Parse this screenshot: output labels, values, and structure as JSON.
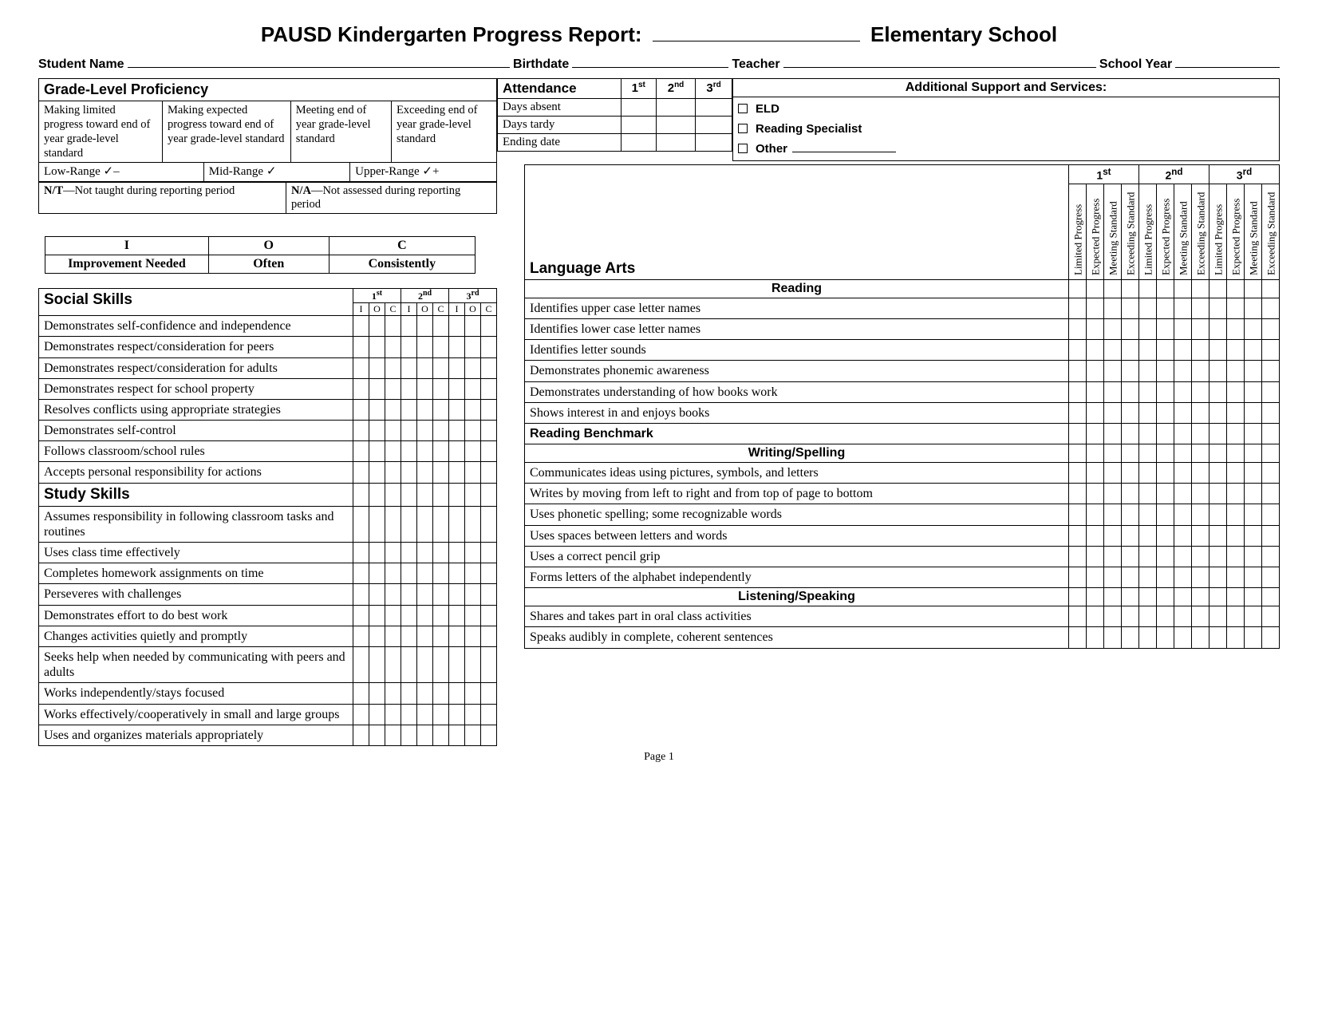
{
  "title_prefix": "PAUSD Kindergarten Progress Report:",
  "title_suffix": "Elementary School",
  "info": {
    "student": "Student Name",
    "birthdate": "Birthdate",
    "teacher": "Teacher",
    "year": "School Year"
  },
  "proficiency": {
    "header": "Grade-Level Proficiency",
    "levels": [
      "Making limited progress toward end of year grade-level standard",
      "Making expected progress toward end of year grade-level standard",
      "Meeting end of year grade-level standard",
      "Exceeding end of year grade-level standard"
    ],
    "ranges": [
      "Low-Range  ✓–",
      "Mid-Range  ✓",
      "Upper-Range  ✓+"
    ]
  },
  "nt": "N/T—Not taught during reporting period",
  "na": "N/A—Not assessed during reporting period",
  "ioc": {
    "i_code": "I",
    "i_label": "Improvement Needed",
    "o_code": "O",
    "o_label": "Often",
    "c_code": "C",
    "c_label": "Consistently"
  },
  "attendance": {
    "header": "Attendance",
    "periods": [
      "1",
      "2",
      "3"
    ],
    "rows": [
      "Days absent",
      "Days tardy",
      "Ending date"
    ]
  },
  "support": {
    "header": "Additional Support and Services:",
    "items": [
      "ELD",
      "Reading Specialist",
      "Other"
    ]
  },
  "left": {
    "social_header": "Social Skills",
    "study_header": "Study Skills",
    "periods": [
      "1",
      "2",
      "3"
    ],
    "sub": [
      "I",
      "O",
      "C"
    ],
    "social_rows": [
      "Demonstrates self-confidence and independence",
      "Demonstrates respect/consideration for peers",
      "Demonstrates respect/consideration for adults",
      "Demonstrates respect for school property",
      "Resolves conflicts using appropriate strategies",
      "Demonstrates self-control",
      "Follows classroom/school rules",
      "Accepts personal responsibility for actions"
    ],
    "study_rows": [
      "Assumes responsibility in following classroom tasks and routines",
      "Uses class time effectively",
      "Completes homework assignments on time",
      "Perseveres with challenges",
      "Demonstrates effort to do best work",
      "Changes activities quietly and promptly",
      "Seeks help when needed by communicating with peers and adults",
      "Works independently/stays focused",
      "Works effectively/cooperatively in small and large groups",
      "Uses and organizes materials appropriately"
    ]
  },
  "right": {
    "header": "Language Arts",
    "periods": [
      "1",
      "2",
      "3"
    ],
    "vcols": [
      "Limited Progress",
      "Expected Progress",
      "Meeting Standard",
      "Exceeding Standard"
    ],
    "reading_hdr": "Reading",
    "reading_rows": [
      "Identifies upper case letter names",
      "Identifies lower case letter names",
      "Identifies letter sounds",
      "Demonstrates phonemic awareness",
      "Demonstrates understanding of how books work",
      "Shows interest in and enjoys books"
    ],
    "benchmark_hdr": "Reading Benchmark",
    "writing_hdr": "Writing/Spelling",
    "writing_rows": [
      "Communicates ideas using pictures, symbols, and letters",
      "Writes by moving from left to right and from top of page to bottom",
      "Uses phonetic spelling; some recognizable words",
      "Uses spaces between letters and words",
      "Uses a correct pencil grip",
      "Forms letters of the alphabet independently"
    ],
    "listen_hdr": "Listening/Speaking",
    "listen_rows": [
      "Shares and takes part in oral class activities",
      "Speaks audibly in complete, coherent sentences"
    ]
  },
  "footer": "Page 1"
}
